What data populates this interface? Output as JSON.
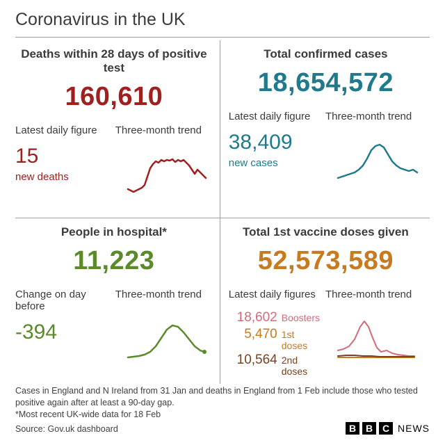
{
  "title": "Coronavirus in the UK",
  "panels": {
    "deaths": {
      "title": "Deaths within 28 days of positive test",
      "big_value": "160,610",
      "color": "#a02020",
      "sub_left_label": "Latest daily figure",
      "sub_left_value": "15",
      "sub_left_caption": "new deaths",
      "sub_right_label": "Three-month trend",
      "spark": {
        "stroke": "#a02020",
        "stroke_width": 2.5,
        "points": [
          18,
          52,
          22,
          54,
          26,
          56,
          30,
          54,
          34,
          52,
          38,
          50,
          42,
          46,
          46,
          34,
          50,
          22,
          54,
          16,
          58,
          12,
          62,
          14,
          66,
          10,
          70,
          12,
          74,
          10,
          78,
          11,
          82,
          9,
          86,
          13,
          90,
          10,
          94,
          12,
          98,
          10,
          102,
          14,
          106,
          18,
          110,
          24,
          114,
          30,
          118,
          24,
          122,
          28,
          126,
          32,
          130,
          36
        ]
      }
    },
    "cases": {
      "title": "Total confirmed cases",
      "big_value": "18,654,572",
      "color": "#1e7a8c",
      "sub_left_label": "Latest daily figure",
      "sub_left_value": "38,409",
      "sub_left_caption": "new cases",
      "sub_right_label": "Three-month trend",
      "spark": {
        "stroke": "#1e7a8c",
        "stroke_width": 2.5,
        "points": [
          18,
          56,
          24,
          54,
          30,
          52,
          36,
          50,
          42,
          48,
          48,
          44,
          54,
          38,
          60,
          28,
          66,
          16,
          72,
          10,
          78,
          8,
          84,
          12,
          90,
          22,
          96,
          32,
          102,
          38,
          108,
          42,
          114,
          44,
          120,
          46,
          126,
          44,
          132,
          48
        ]
      }
    },
    "hospital": {
      "title": "People in hospital*",
      "big_value": "11,223",
      "color": "#5a8a2a",
      "sub_left_label": "Change on day before",
      "sub_left_value": "-394",
      "sub_left_caption": "",
      "sub_right_label": "Three-month trend",
      "spark": {
        "stroke": "#5a8a2a",
        "stroke_width": 2.5,
        "points": [
          18,
          58,
          26,
          57,
          34,
          56,
          42,
          54,
          50,
          50,
          58,
          42,
          66,
          30,
          74,
          18,
          82,
          12,
          90,
          14,
          98,
          22,
          106,
          32,
          114,
          42,
          122,
          48,
          128,
          50
        ],
        "end_dot": [
          128,
          50
        ]
      }
    },
    "vaccines": {
      "title": "Total 1st vaccine doses given",
      "big_value": "52,573,589",
      "color": "#c87a1e",
      "sub_left_label": "Latest daily figures",
      "sub_right_label": "Three-month trend",
      "rows": [
        {
          "value": "18,602",
          "label": "Boosters",
          "color": "#d46a7a"
        },
        {
          "value": "5,470",
          "label": "1st doses",
          "color": "#c87a1e"
        },
        {
          "value": "10,564",
          "label": "2nd doses",
          "color": "#7a4020"
        }
      ],
      "sparks": [
        {
          "stroke": "#d46a7a",
          "stroke_width": 2,
          "points": [
            18,
            48,
            26,
            46,
            34,
            42,
            42,
            32,
            50,
            14,
            56,
            6,
            62,
            14,
            68,
            30,
            74,
            44,
            80,
            50,
            88,
            48,
            96,
            52,
            104,
            54,
            112,
            55,
            120,
            56,
            128,
            56
          ]
        },
        {
          "stroke": "#c87a1e",
          "stroke_width": 2,
          "points": [
            18,
            58,
            30,
            58,
            42,
            58,
            54,
            58,
            66,
            58,
            78,
            58,
            90,
            58,
            102,
            58,
            114,
            58,
            128,
            58
          ]
        },
        {
          "stroke": "#7a4020",
          "stroke_width": 2,
          "points": [
            18,
            56,
            30,
            55,
            42,
            55,
            54,
            56,
            66,
            56,
            78,
            57,
            90,
            57,
            102,
            57,
            114,
            57,
            128,
            57
          ]
        }
      ]
    }
  },
  "footer": {
    "line1": "Cases in England and N Ireland from 31 Jan and deaths in England from 1 Feb include those who tested positive again after at least a 90-day gap.",
    "line2": "*Most recent UK-wide data for 18 Feb",
    "line3": "Source: Gov.uk dashboard",
    "logo_letters": [
      "B",
      "B",
      "C"
    ],
    "logo_word": "NEWS"
  },
  "style": {
    "background": "#ffffff",
    "divider": "#a0a0a0",
    "text": "#3b3b3b",
    "title_fontsize": 25,
    "panel_title_fontsize": 17,
    "big_number_fontsize": 38,
    "sub_label_fontsize": 15,
    "sub_value_fontsize": 30,
    "footer_fontsize": 12.5
  }
}
